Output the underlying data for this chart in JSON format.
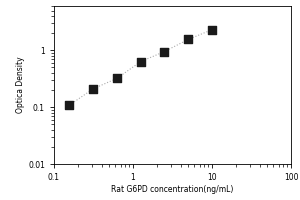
{
  "title": "",
  "xlabel": "Rat G6PD concentration(ng/mL)",
  "ylabel": "Optica Density",
  "x_data": [
    0.156,
    0.313,
    0.625,
    1.25,
    2.5,
    5.0,
    10.0
  ],
  "y_data": [
    0.108,
    0.21,
    0.32,
    0.63,
    0.95,
    1.55,
    2.3
  ],
  "xlim": [
    0.1,
    100
  ],
  "ylim": [
    0.01,
    6
  ],
  "x_ticks": [
    0.1,
    1,
    10,
    100
  ],
  "x_tick_labels": [
    "0.1",
    "1",
    "10",
    "100"
  ],
  "y_ticks": [
    0.01,
    0.1,
    1
  ],
  "y_tick_labels": [
    "0.01",
    "0.1",
    "1"
  ],
  "marker_color": "#1a1a1a",
  "line_color": "#aaaaaa",
  "background_color": "#ffffff",
  "marker_size": 6,
  "line_width": 0.8
}
